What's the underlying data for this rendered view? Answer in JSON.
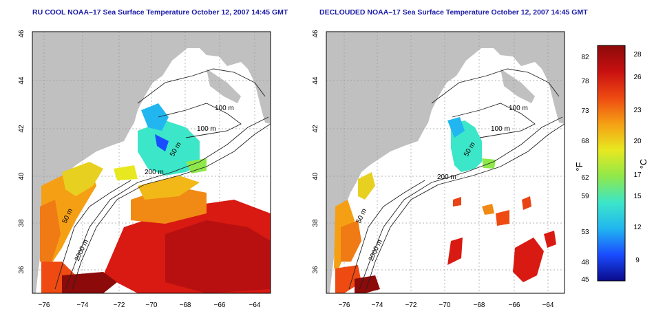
{
  "panels": [
    {
      "title": "RU COOL NOAA–17 Sea Surface Temperature October 12, 2007 14:45 GMT",
      "contours": [
        "100 m",
        "100 m",
        "50 m",
        "200 m",
        "50 m",
        "2000 m"
      ]
    },
    {
      "title": "DECLOUDED NOAA–17 Sea Surface Temperature October 12, 2007 14:45 GMT",
      "contours": [
        "100 m",
        "100 m",
        "50 m",
        "200 m",
        "50 m",
        "2000 m"
      ]
    }
  ],
  "axes": {
    "x_ticks": [
      "−76",
      "−74",
      "−72",
      "−70",
      "−68",
      "−66",
      "−64"
    ],
    "y_ticks": [
      "36",
      "38",
      "40",
      "42",
      "44",
      "46"
    ]
  },
  "colorbar": {
    "f_label": "°F",
    "c_label": "°C",
    "f_ticks": [
      "82",
      "78",
      "73",
      "68",
      "62",
      "59",
      "53",
      "48",
      "45"
    ],
    "c_ticks": [
      "28",
      "26",
      "23",
      "20",
      "17",
      "15",
      "12",
      "9"
    ],
    "colors": [
      "#0a0a8a",
      "#1a4cff",
      "#21b6f0",
      "#3ce6c8",
      "#8fe84a",
      "#e8e820",
      "#f5a014",
      "#ee4a12",
      "#c81010",
      "#8c0a0a"
    ]
  },
  "colors": {
    "land": "#c0c0c0",
    "water": "#ffffff",
    "title": "#1a1aa8",
    "contour": "#222222"
  }
}
